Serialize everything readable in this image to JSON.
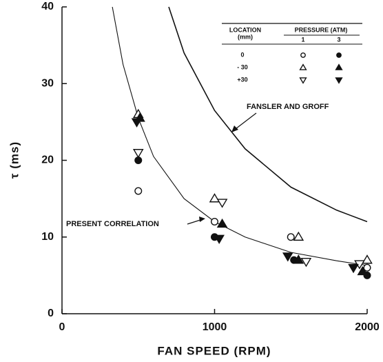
{
  "chart_data": {
    "type": "scatter",
    "xlabel": "FAN SPEED (RPM)",
    "ylabel": "τ (ms)",
    "xlim": [
      0,
      2000
    ],
    "ylim": [
      0,
      40
    ],
    "xticks": [
      0,
      1000,
      2000
    ],
    "yticks": [
      0,
      10,
      20,
      30,
      40
    ],
    "color": "#111111",
    "legend": {
      "location_header": [
        "LOCATION",
        "(mm)"
      ],
      "pressure_header": "PRESSURE (ATM)",
      "pressures": [
        "1",
        "3"
      ],
      "locations": [
        "0",
        "- 30",
        "+30"
      ]
    },
    "series": [
      {
        "marker": "circle",
        "filled": false,
        "x": [
          500,
          1000,
          1500,
          2000
        ],
        "values": [
          16,
          12,
          10,
          6
        ]
      },
      {
        "marker": "circle",
        "filled": true,
        "x": [
          500,
          1000,
          1520,
          2000
        ],
        "values": [
          20,
          10,
          7,
          5
        ]
      },
      {
        "marker": "triangle-up",
        "filled": false,
        "x": [
          500,
          1000,
          1550,
          2000
        ],
        "values": [
          26,
          15,
          10,
          7
        ]
      },
      {
        "marker": "triangle-up",
        "filled": true,
        "x": [
          510,
          1050,
          1550,
          1970
        ],
        "values": [
          25.5,
          11.7,
          7,
          5.5
        ]
      },
      {
        "marker": "triangle-down",
        "filled": false,
        "x": [
          500,
          1050,
          1600,
          1950
        ],
        "values": [
          21,
          14.5,
          6.8,
          6.5
        ]
      },
      {
        "marker": "triangle-down",
        "filled": true,
        "x": [
          490,
          1030,
          1480,
          1910
        ],
        "values": [
          25,
          9.8,
          7.5,
          6
        ]
      }
    ],
    "curves": [
      {
        "x": [
          330,
          400,
          500,
          600,
          800,
          1000,
          1200,
          1500,
          1800,
          2000
        ],
        "values": [
          40,
          32.5,
          25.5,
          20.5,
          15,
          12,
          10,
          8,
          6.9,
          6.3
        ]
      },
      {
        "x": [
          700,
          800,
          1000,
          1200,
          1500,
          1800,
          2000
        ],
        "values": [
          40,
          34,
          26.5,
          21.5,
          16.5,
          13.5,
          12
        ]
      }
    ],
    "annotations": [
      "FANSLER AND GROFF",
      "PRESENT CORRELATION"
    ]
  }
}
